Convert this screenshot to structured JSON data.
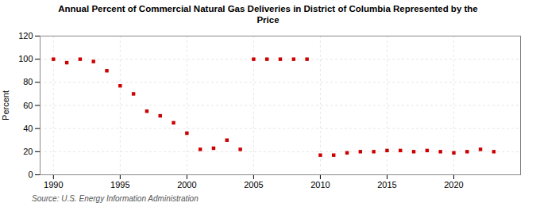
{
  "chart_data": {
    "type": "scatter",
    "title": "Annual Percent of Commercial Natural Gas Deliveries in District of Columbia Represented by the\nPrice",
    "ylabel": "Percent",
    "source": "Source: U.S. Energy Information Administration",
    "x": [
      1990,
      1991,
      1992,
      1993,
      1994,
      1995,
      1996,
      1997,
      1998,
      1999,
      2000,
      2001,
      2002,
      2003,
      2004,
      2005,
      2006,
      2007,
      2008,
      2009,
      2010,
      2011,
      2012,
      2013,
      2014,
      2015,
      2016,
      2017,
      2018,
      2019,
      2020,
      2021,
      2022,
      2023
    ],
    "values": [
      100,
      97,
      100,
      98,
      90,
      77,
      70,
      55,
      51,
      45,
      36,
      22,
      23,
      30,
      22,
      100,
      100,
      100,
      100,
      100,
      17,
      17,
      19,
      20,
      20,
      21,
      21,
      20,
      21,
      20,
      19,
      20,
      22,
      20
    ],
    "color": "#cc0000",
    "marker": "square",
    "xlim": [
      1989,
      2025
    ],
    "ylim": [
      0,
      120
    ],
    "yticks": [
      0,
      20,
      40,
      60,
      80,
      100,
      120
    ],
    "xticks": [
      1990,
      1995,
      2000,
      2005,
      2010,
      2015,
      2020
    ],
    "grid": true
  }
}
